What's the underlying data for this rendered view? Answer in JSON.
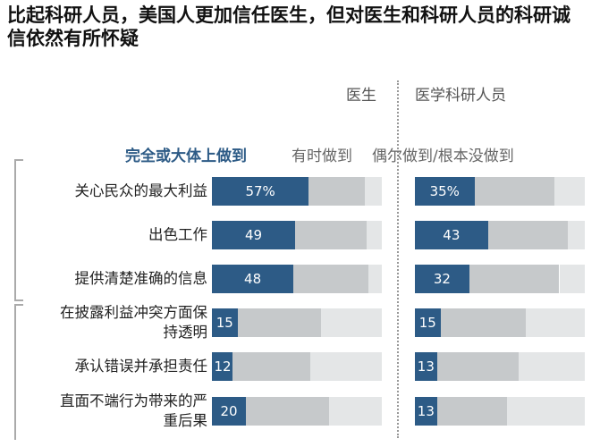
{
  "chart_data": {
    "type": "stacked-barh",
    "title": "比起科研人员，美国人更加信任医生，但对医生和科研人员的科研诚信依然有所怀疑",
    "categories": [
      "关心民众的最大利益",
      "出色工作",
      "提供清楚准确的信息",
      "在披露利益冲突方面保持透明",
      "承认错误并承担责任",
      "直面不端行为带来的严重后果"
    ],
    "xlim": [
      0,
      100
    ],
    "series": [
      {
        "name": "完全或大体上做到",
        "color": "#2d5b86"
      },
      {
        "name": "有时做到",
        "color": "#c6c9cb"
      },
      {
        "name": "偶尔做到/根本没做到",
        "color": "#e4e6e7"
      }
    ],
    "panels": [
      {
        "title": "医生",
        "series": [
          {
            "values": [
              57,
              49,
              48,
              15,
              12,
              20
            ],
            "value_labels": [
              "57%",
              "49",
              "48",
              "15",
              "12",
              "20"
            ]
          },
          {
            "values": [
              33,
              42,
              44,
              49,
              46,
              49
            ]
          },
          {
            "values": [
              10,
              9,
              8,
              36,
              42,
              31
            ]
          }
        ]
      },
      {
        "title": "医学科研人员",
        "series": [
          {
            "values": [
              35,
              43,
              32,
              15,
              13,
              13
            ],
            "value_labels": [
              "35%",
              "43",
              "32",
              "15",
              "13",
              "13"
            ]
          },
          {
            "values": [
              47,
              47,
              53,
              50,
              48,
              41
            ]
          },
          {
            "values": [
              18,
              10,
              15,
              35,
              39,
              46
            ]
          }
        ]
      }
    ]
  }
}
